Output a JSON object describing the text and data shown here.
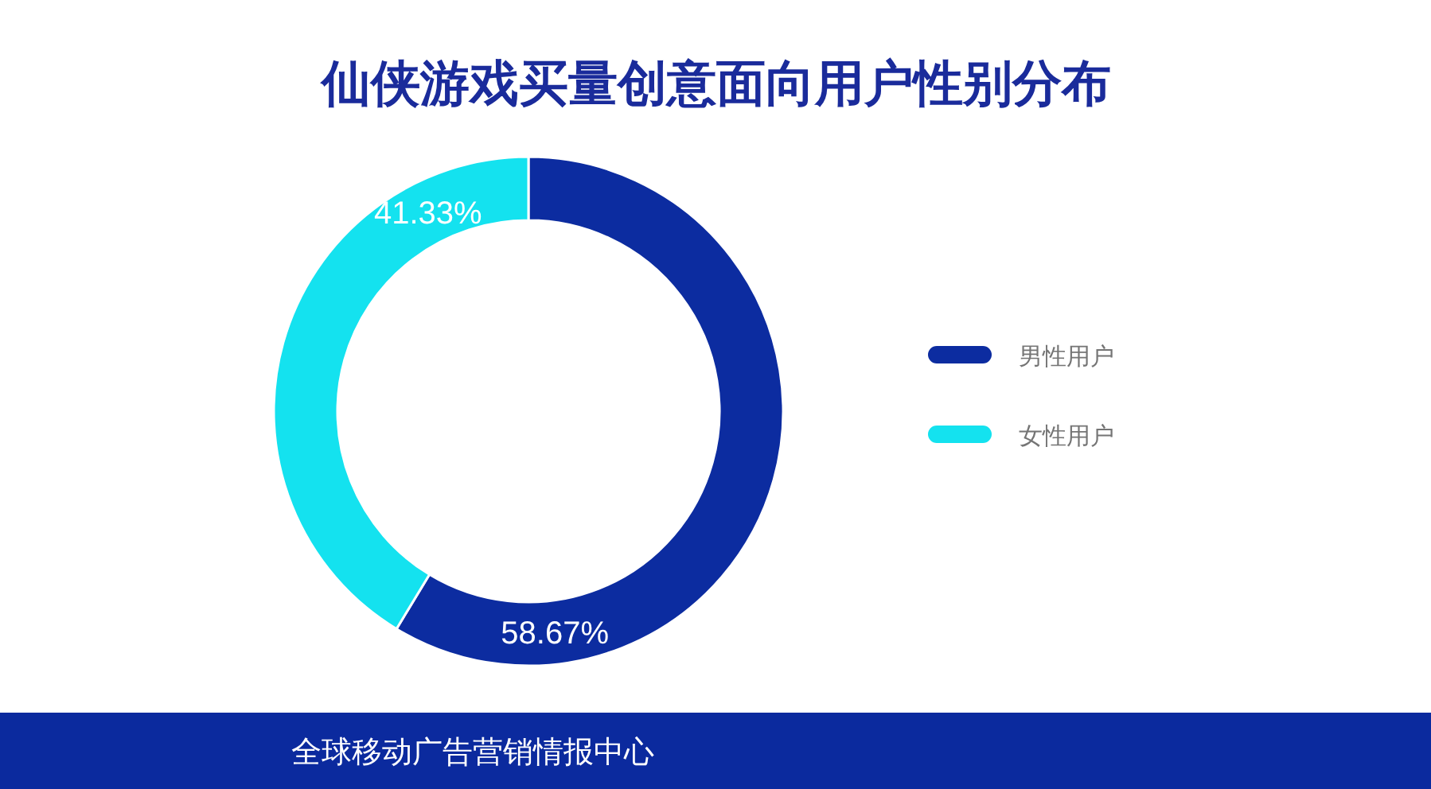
{
  "chart_data": {
    "type": "donut",
    "title": "仙侠游戏买量创意面向用户性别分布",
    "categories": [
      "男性用户",
      "女性用户"
    ],
    "values": [
      58.67,
      41.33
    ],
    "colors": [
      "#0c2ca0",
      "#14e2ef"
    ],
    "value_labels": [
      "58.67%",
      "41.33%"
    ],
    "legend": "right",
    "annotations": [
      "全球移动广告营销情报中心"
    ]
  }
}
